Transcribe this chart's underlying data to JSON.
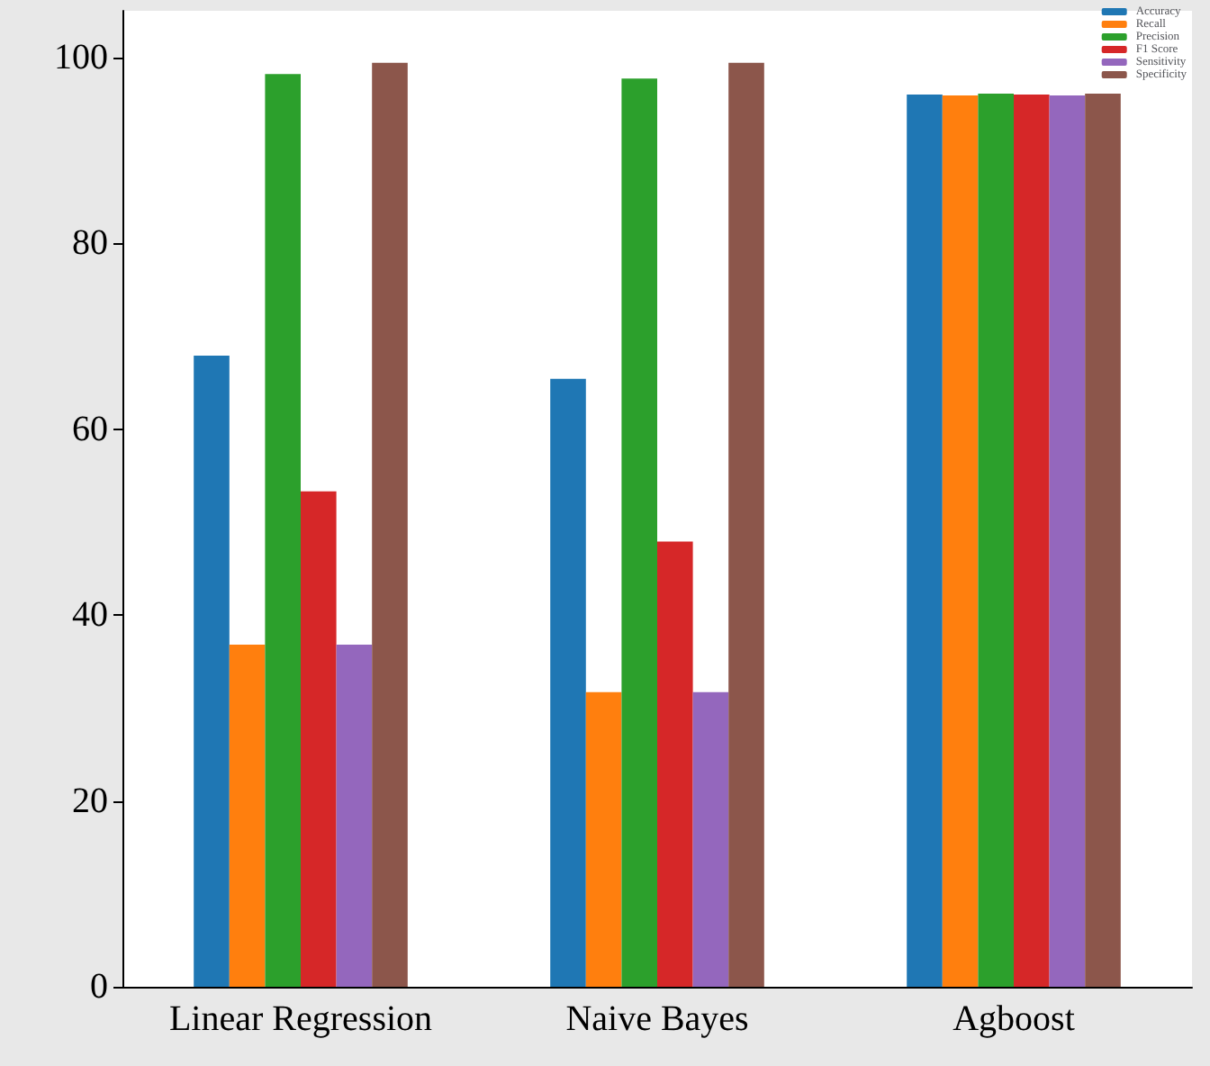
{
  "chart_data": {
    "type": "bar",
    "categories": [
      "Linear Regression",
      "Naive Bayes",
      "Agboost"
    ],
    "series": [
      {
        "name": "Accuracy",
        "color": "#1f77b4",
        "values": [
          67.9,
          65.4,
          96.0
        ]
      },
      {
        "name": "Recall",
        "color": "#ff7f0e",
        "values": [
          36.8,
          31.7,
          95.9
        ]
      },
      {
        "name": "Precision",
        "color": "#2ca02c",
        "values": [
          98.2,
          97.7,
          96.1
        ]
      },
      {
        "name": "F1 Score",
        "color": "#d62728",
        "values": [
          53.3,
          47.9,
          96.0
        ]
      },
      {
        "name": "Sensitivity",
        "color": "#9467bd",
        "values": [
          36.8,
          31.7,
          95.9
        ]
      },
      {
        "name": "Specificity",
        "color": "#8c564b",
        "values": [
          99.4,
          99.4,
          96.1
        ]
      }
    ],
    "ylim": [
      0,
      105
    ],
    "yticks": [
      0,
      20,
      40,
      60,
      80,
      100
    ],
    "grid": false,
    "legend": "top right"
  }
}
